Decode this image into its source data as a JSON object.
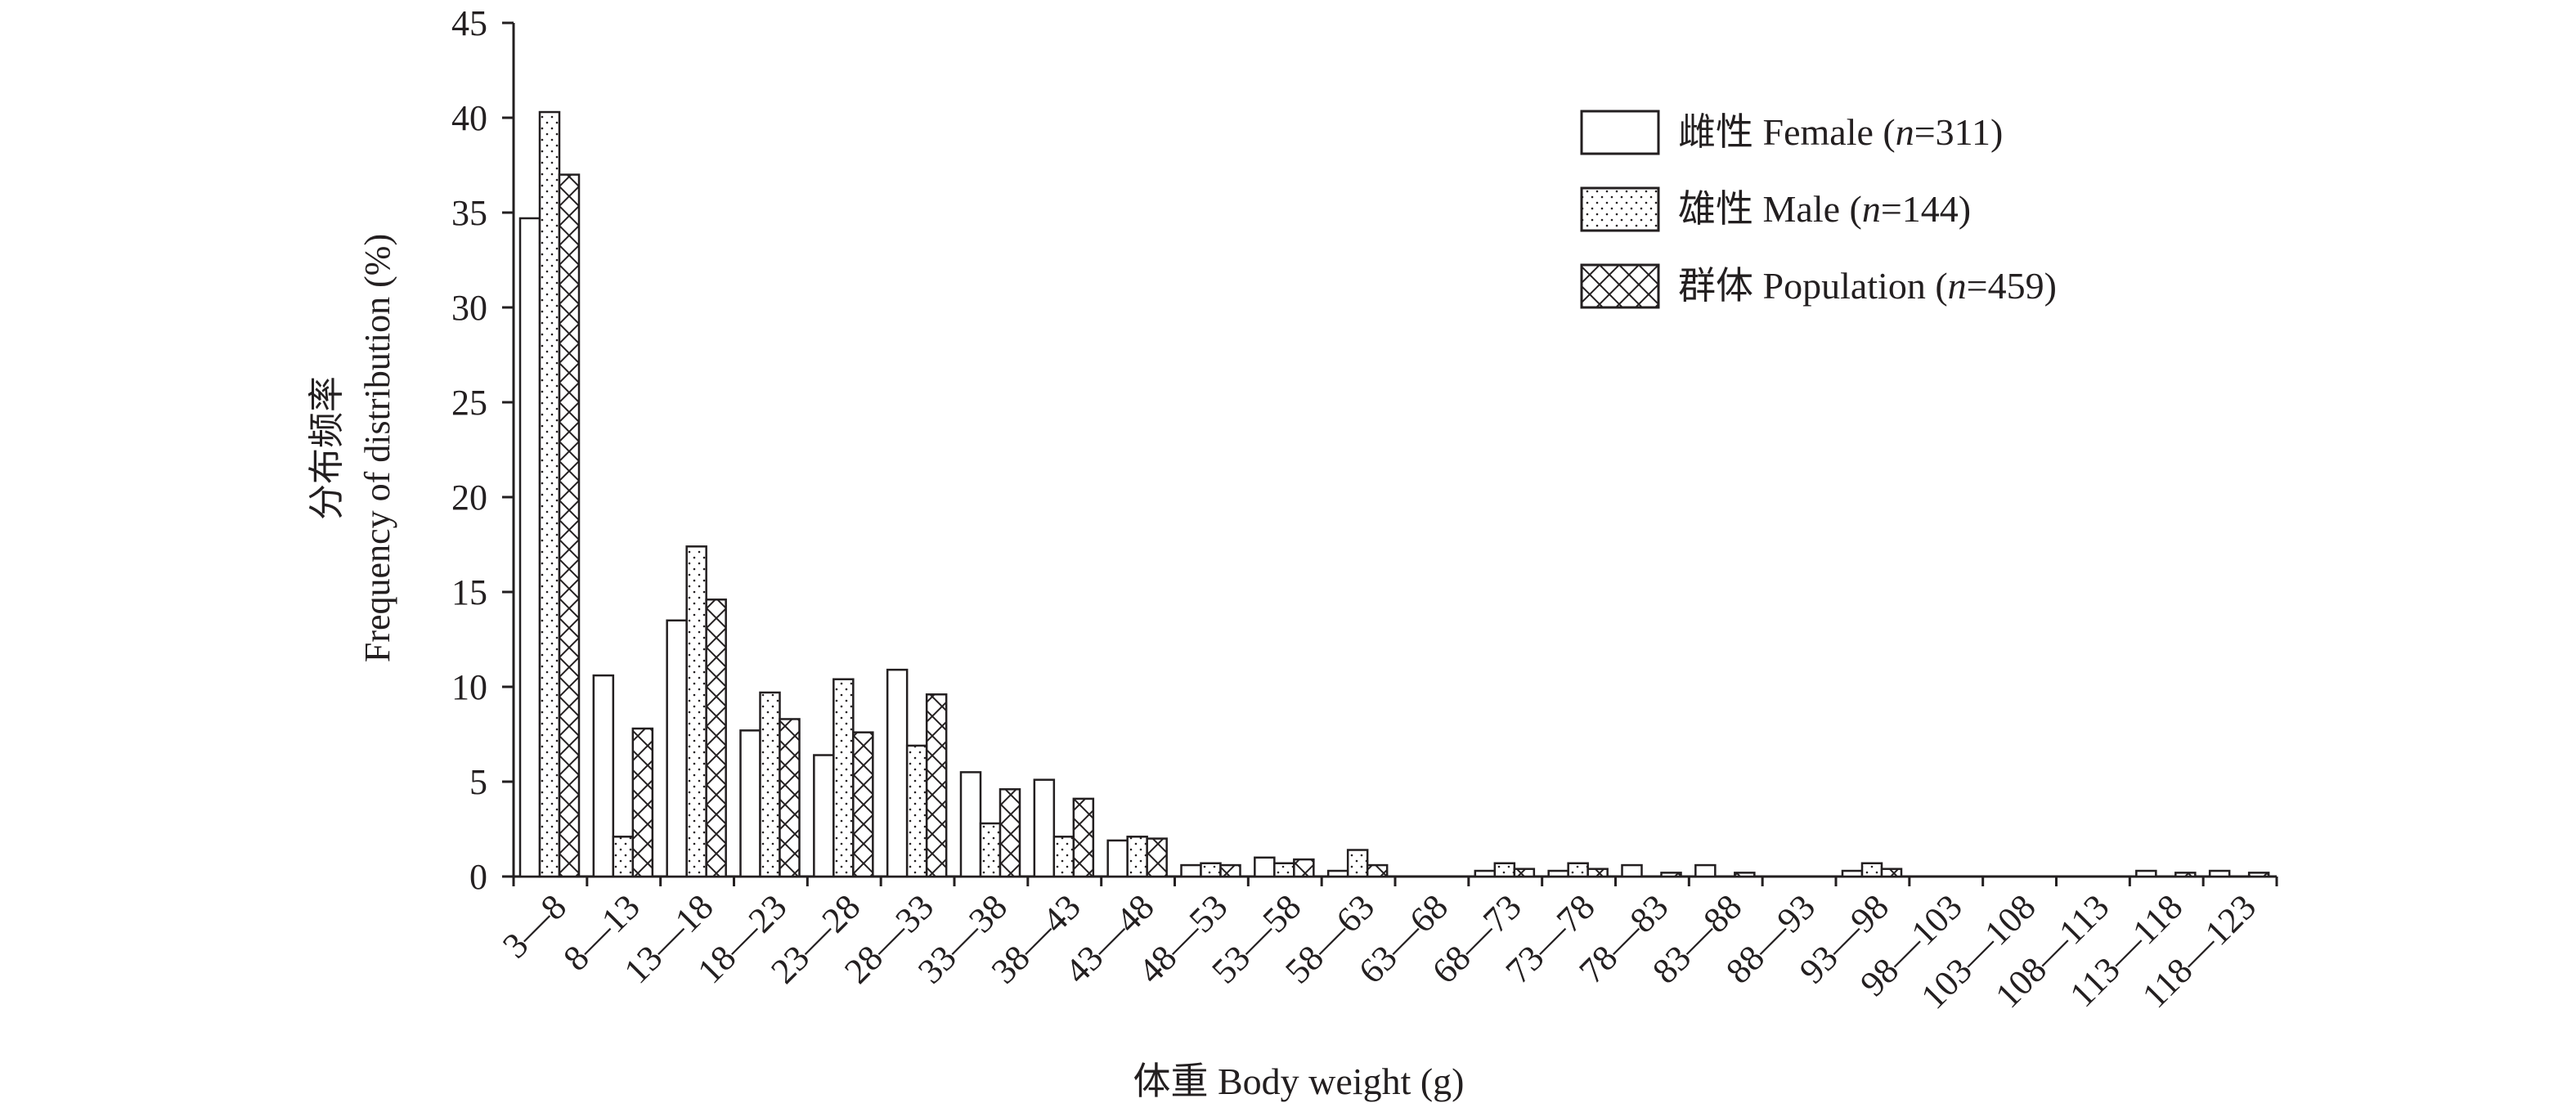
{
  "chart_data": {
    "type": "bar",
    "xlabel": "体重 Body weight (g)",
    "ylabel_line1": "分布频率",
    "ylabel_line2": "Frequency of distribution (%)",
    "ylim": [
      0,
      45
    ],
    "yticks": [
      0,
      5,
      10,
      15,
      20,
      25,
      30,
      35,
      40,
      45
    ],
    "grid": false,
    "legend_position": "top-right",
    "categories": [
      "3—8",
      "8—13",
      "13—18",
      "18—23",
      "23—28",
      "28—33",
      "33—38",
      "38—43",
      "43—48",
      "48—53",
      "53—58",
      "58—63",
      "63—68",
      "68—73",
      "73—78",
      "78—83",
      "83—88",
      "88—93",
      "93—98",
      "98—103",
      "103—108",
      "108—113",
      "113—118",
      "118—123"
    ],
    "series": [
      {
        "name": "雌性 Female (n=311)",
        "label_prefix": "雌性 Female (",
        "label_n": "n",
        "label_suffix": "=311)",
        "pattern": "blank",
        "values": [
          34.7,
          10.6,
          13.5,
          7.7,
          6.4,
          10.9,
          5.5,
          5.1,
          1.9,
          0.6,
          1.0,
          0.3,
          0,
          0.3,
          0.3,
          0.6,
          0.6,
          0,
          0.3,
          0,
          0,
          0,
          0.3,
          0.3
        ]
      },
      {
        "name": "雄性 Male (n=144)",
        "label_prefix": "雄性 Male (",
        "label_n": "n",
        "label_suffix": "=144)",
        "pattern": "dots",
        "values": [
          40.3,
          2.1,
          17.4,
          9.7,
          10.4,
          6.9,
          2.8,
          2.1,
          2.1,
          0.7,
          0.7,
          1.4,
          0,
          0.7,
          0.7,
          0,
          0,
          0,
          0.7,
          0,
          0,
          0,
          0,
          0
        ]
      },
      {
        "name": "群体 Population (n=459)",
        "label_prefix": "群体 Population (",
        "label_n": "n",
        "label_suffix": "=459)",
        "pattern": "crosshatch",
        "values": [
          37.0,
          7.8,
          14.6,
          8.3,
          7.6,
          9.6,
          4.6,
          4.1,
          2.0,
          0.6,
          0.9,
          0.6,
          0,
          0.4,
          0.4,
          0.2,
          0.2,
          0,
          0.4,
          0,
          0,
          0,
          0.2,
          0.2
        ]
      }
    ]
  }
}
